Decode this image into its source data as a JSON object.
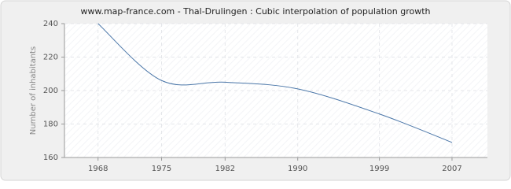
{
  "chart_data": {
    "type": "line",
    "title": "www.map-france.com - Thal-Drulingen : Cubic interpolation of population growth",
    "y_label": "Number of inhabitants",
    "x": [
      1968,
      1975,
      1982,
      1990,
      1999,
      2007
    ],
    "series": [
      {
        "name": "Population",
        "color": "#4a76a8",
        "values": [
          240,
          206,
          205,
          201,
          186,
          169
        ]
      }
    ],
    "xlim": [
      1964.3,
      2010.9
    ],
    "xticks": [
      1968,
      1975,
      1982,
      1990,
      1999,
      2007
    ],
    "ylim": [
      160,
      240
    ],
    "yticks": [
      160,
      180,
      200,
      220,
      240
    ],
    "grid": true
  }
}
